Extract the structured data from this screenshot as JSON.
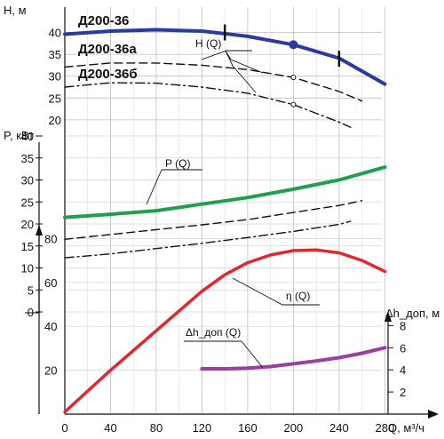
{
  "chart_data": {
    "type": "line",
    "title": "",
    "x": {
      "label": "Q, м³/ч",
      "ticks": [
        0,
        40,
        80,
        120,
        160,
        200,
        240,
        280
      ],
      "range": [
        0,
        290
      ]
    },
    "grid": true,
    "head": {
      "axis_label": "H, м",
      "ticks": [
        20,
        25,
        30,
        35,
        40
      ],
      "range": [
        15,
        43
      ],
      "pump_names": [
        "Д200-36",
        "Д200-36а",
        "Д200-36б"
      ],
      "curve_label": "H (Q)",
      "series": [
        {
          "name": "Д200-36",
          "x": [
            0,
            40,
            80,
            120,
            160,
            200,
            240,
            280
          ],
          "y": [
            39.6,
            40.3,
            40.6,
            40.3,
            39.1,
            37.2,
            34.1,
            28.2
          ],
          "color": "#2b3a9e",
          "style": "solid"
        },
        {
          "name": "Д200-36а",
          "x": [
            0,
            40,
            80,
            120,
            160,
            200,
            240,
            260
          ],
          "y": [
            32.1,
            33.0,
            33.0,
            32.5,
            31.5,
            29.7,
            26.5,
            24.3
          ],
          "color": "#111111",
          "style": "dashed"
        },
        {
          "name": "Д200-36б",
          "x": [
            0,
            40,
            80,
            120,
            160,
            200,
            240,
            250
          ],
          "y": [
            27.5,
            28.5,
            28.4,
            27.5,
            26.1,
            23.5,
            19.5,
            18.3
          ],
          "color": "#111111",
          "style": "dashdot"
        }
      ],
      "working_range_marks": [
        {
          "x": 140,
          "y": 40.0
        },
        {
          "x": 240,
          "y": 34.0
        }
      ],
      "operating_point": {
        "x": 200,
        "y": 37.2
      },
      "markers": [
        {
          "x": 200,
          "y": 29.7
        },
        {
          "x": 200,
          "y": 23.5
        }
      ]
    },
    "power": {
      "axis_label": "P, кВт",
      "ticks": [
        0,
        5,
        10,
        15,
        20,
        25,
        30,
        35,
        40
      ],
      "range": [
        0,
        45
      ],
      "curve_label": "P (Q)",
      "series": [
        {
          "name": "Д200-36",
          "x": [
            0,
            40,
            80,
            120,
            160,
            200,
            240,
            280
          ],
          "y": [
            21.5,
            22.2,
            23.0,
            24.5,
            26.0,
            27.9,
            30.0,
            32.9
          ],
          "color": "#1fa050",
          "style": "solid"
        },
        {
          "name": "Д200-36а",
          "x": [
            0,
            40,
            80,
            120,
            160,
            200,
            240,
            260
          ],
          "y": [
            16.5,
            17.6,
            18.7,
            19.8,
            21.0,
            22.6,
            24.2,
            25.3
          ],
          "color": "#111111",
          "style": "dashed"
        },
        {
          "name": "Д200-36б",
          "x": [
            0,
            40,
            80,
            120,
            160,
            200,
            240,
            250
          ],
          "y": [
            12.3,
            13.2,
            14.4,
            15.6,
            16.9,
            18.3,
            19.9,
            20.6
          ],
          "color": "#111111",
          "style": "dashdot"
        }
      ]
    },
    "efficiency": {
      "axis_label": "",
      "ticks": [
        20,
        40,
        60,
        80
      ],
      "range": [
        0,
        90
      ],
      "curve_label": "η (Q)",
      "series": [
        {
          "name": "",
          "x": [
            0,
            40,
            80,
            120,
            140,
            160,
            180,
            200,
            220,
            240,
            260,
            280
          ],
          "y": [
            1,
            20,
            38,
            56,
            63.5,
            69,
            72.5,
            74.5,
            74.8,
            73.5,
            70,
            65
          ],
          "color": "#e5262b",
          "style": "solid"
        }
      ]
    },
    "npsh": {
      "axis_label": "Δh_доп, м",
      "ticks": [
        2,
        4,
        6,
        8
      ],
      "range": [
        0,
        9.5
      ],
      "curve_label": "Δh_доп (Q)",
      "series": [
        {
          "name": "",
          "x": [
            120,
            140,
            160,
            180,
            200,
            220,
            240,
            260,
            280
          ],
          "y": [
            4.1,
            4.1,
            4.15,
            4.3,
            4.55,
            4.8,
            5.1,
            5.5,
            6.0
          ],
          "color": "#9b3ea0",
          "style": "solid"
        }
      ]
    }
  }
}
